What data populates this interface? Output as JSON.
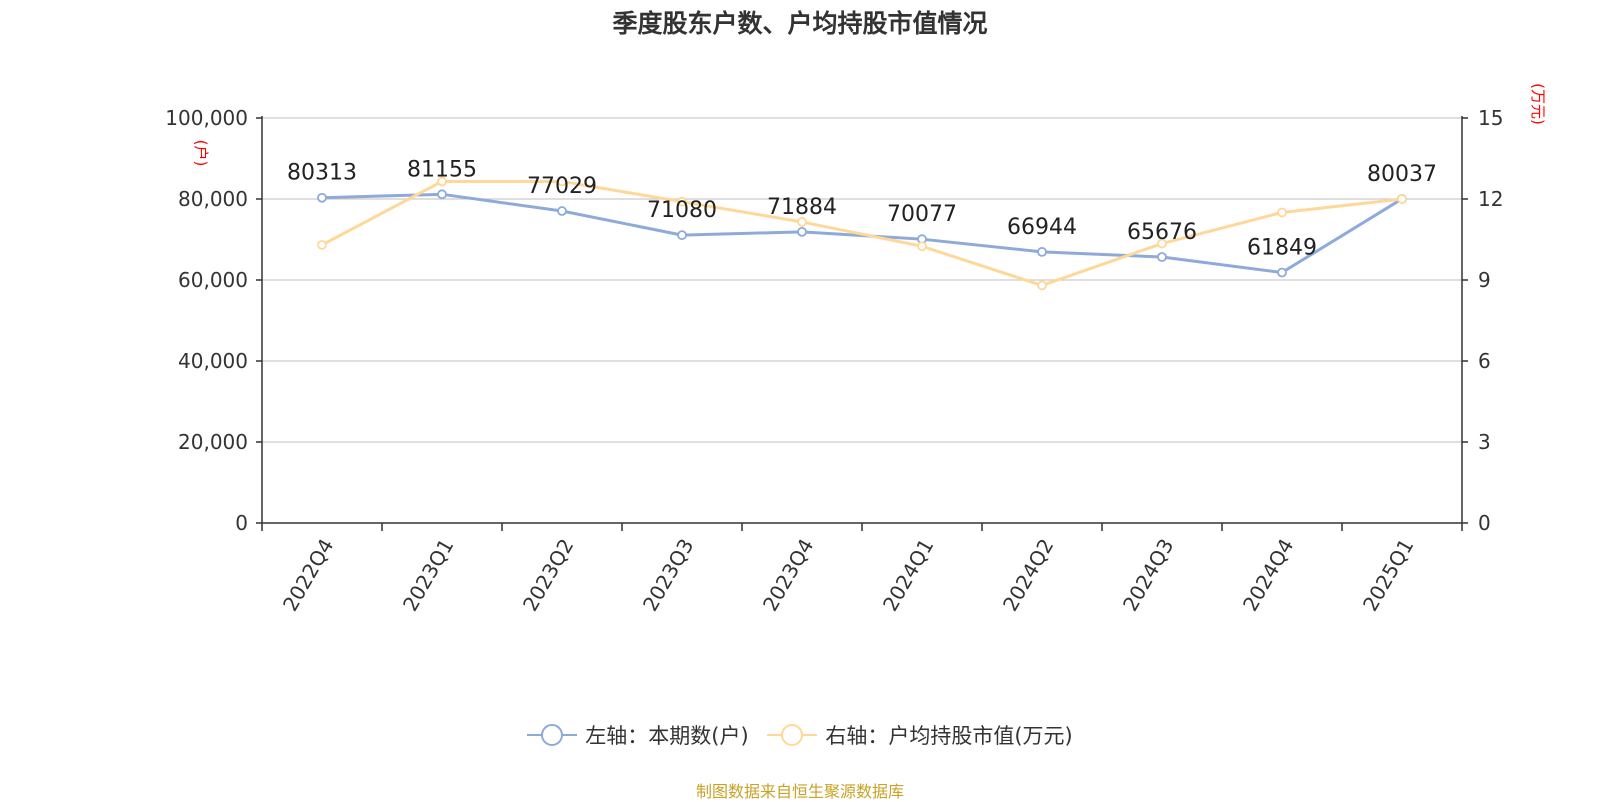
{
  "title": "季度股东户数、户均持股市值情况",
  "source": "制图数据来自恒生聚源数据库",
  "chart_data": {
    "type": "line",
    "title": "季度股东户数、户均持股市值情况",
    "categories": [
      "2022Q4",
      "2023Q1",
      "2023Q2",
      "2023Q3",
      "2023Q4",
      "2024Q1",
      "2024Q2",
      "2024Q3",
      "2024Q4",
      "2025Q1"
    ],
    "series": [
      {
        "name": "左轴：本期数(户)",
        "axis": "left",
        "color": "#8eaadb",
        "values": [
          80313,
          81155,
          77029,
          71080,
          71884,
          70077,
          66944,
          65676,
          61849,
          80037
        ],
        "labels": [
          "80313",
          "81155",
          "77029",
          "71080",
          "71884",
          "70077",
          "66944",
          "65676",
          "61849",
          "80037"
        ]
      },
      {
        "name": "右轴：户均持股市值(万元)",
        "axis": "right",
        "color": "#ffd899",
        "values": [
          10.3,
          12.65,
          12.65,
          11.9,
          11.15,
          10.25,
          8.8,
          10.35,
          11.5,
          12.0
        ]
      }
    ],
    "left_axis": {
      "unit": "(户)",
      "ylim": [
        0,
        100000
      ],
      "ticks": [
        "0",
        "20,000",
        "40,000",
        "60,000",
        "80,000",
        "100,000"
      ],
      "tick_values": [
        0,
        20000,
        40000,
        60000,
        80000,
        100000
      ]
    },
    "right_axis": {
      "unit": "(万元)",
      "ylim": [
        0,
        15
      ],
      "ticks": [
        "0",
        "3",
        "6",
        "9",
        "12",
        "15"
      ],
      "tick_values": [
        0,
        3,
        6,
        9,
        12,
        15
      ]
    },
    "grid": true,
    "legend_position": "bottom"
  }
}
